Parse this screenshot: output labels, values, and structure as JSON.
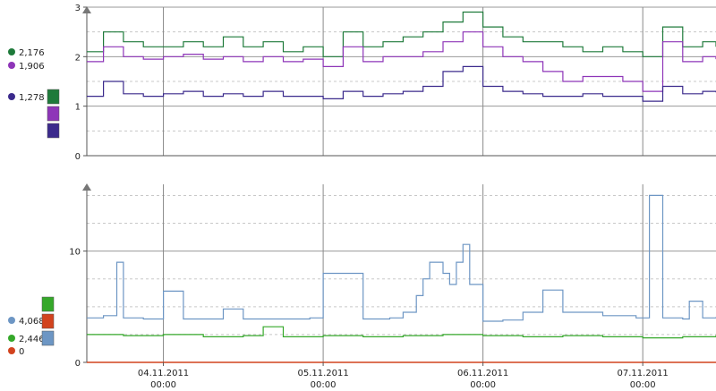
{
  "chart_data": [
    {
      "type": "line",
      "title": "",
      "xlabel": "",
      "ylabel": "",
      "ylim": [
        0,
        3
      ],
      "yticks": [
        0,
        1,
        2,
        3
      ],
      "grid": true,
      "x_range": [
        "03.11.2011 12:30",
        "07.11.2011 11:00"
      ],
      "x_ticks": [
        {
          "date": "04.11.2011",
          "time": "00:00"
        },
        {
          "date": "05.11.2011",
          "time": "00:00"
        },
        {
          "date": "06.11.2011",
          "time": "00:00"
        },
        {
          "date": "07.11.2011",
          "time": "00:00"
        }
      ],
      "series": [
        {
          "legend_value": "2,176",
          "color": "#1e7a3a",
          "x": [
            "03.11.2011 12:30",
            "03.11.2011 15:00",
            "03.11.2011 18:00",
            "03.11.2011 21:00",
            "04.11.2011 00:00",
            "04.11.2011 03:00",
            "04.11.2011 06:00",
            "04.11.2011 09:00",
            "04.11.2011 12:00",
            "04.11.2011 15:00",
            "04.11.2011 18:00",
            "04.11.2011 21:00",
            "05.11.2011 00:00",
            "05.11.2011 03:00",
            "05.11.2011 06:00",
            "05.11.2011 09:00",
            "05.11.2011 12:00",
            "05.11.2011 15:00",
            "05.11.2011 18:00",
            "05.11.2011 21:00",
            "06.11.2011 00:00",
            "06.11.2011 03:00",
            "06.11.2011 06:00",
            "06.11.2011 09:00",
            "06.11.2011 12:00",
            "06.11.2011 15:00",
            "06.11.2011 18:00",
            "06.11.2011 21:00",
            "07.11.2011 00:00",
            "07.11.2011 03:00",
            "07.11.2011 06:00",
            "07.11.2011 09:00",
            "07.11.2011 11:00"
          ],
          "values": [
            2.1,
            2.5,
            2.3,
            2.2,
            2.2,
            2.3,
            2.2,
            2.4,
            2.2,
            2.3,
            2.1,
            2.2,
            2.0,
            2.5,
            2.2,
            2.3,
            2.4,
            2.5,
            2.7,
            2.9,
            2.6,
            2.4,
            2.3,
            2.3,
            2.2,
            2.1,
            2.2,
            2.1,
            2.0,
            2.6,
            2.2,
            2.3,
            2.2
          ]
        },
        {
          "legend_value": "1,906",
          "color": "#8e35b8",
          "x": [
            "03.11.2011 12:30",
            "03.11.2011 15:00",
            "03.11.2011 18:00",
            "03.11.2011 21:00",
            "04.11.2011 00:00",
            "04.11.2011 03:00",
            "04.11.2011 06:00",
            "04.11.2011 09:00",
            "04.11.2011 12:00",
            "04.11.2011 15:00",
            "04.11.2011 18:00",
            "04.11.2011 21:00",
            "05.11.2011 00:00",
            "05.11.2011 03:00",
            "05.11.2011 06:00",
            "05.11.2011 09:00",
            "05.11.2011 12:00",
            "05.11.2011 15:00",
            "05.11.2011 18:00",
            "05.11.2011 21:00",
            "06.11.2011 00:00",
            "06.11.2011 03:00",
            "06.11.2011 06:00",
            "06.11.2011 09:00",
            "06.11.2011 12:00",
            "06.11.2011 15:00",
            "06.11.2011 18:00",
            "06.11.2011 21:00",
            "07.11.2011 00:00",
            "07.11.2011 03:00",
            "07.11.2011 06:00",
            "07.11.2011 09:00",
            "07.11.2011 11:00"
          ],
          "values": [
            1.9,
            2.2,
            2.0,
            1.95,
            2.0,
            2.05,
            1.95,
            2.0,
            1.9,
            2.0,
            1.9,
            1.95,
            1.8,
            2.2,
            1.9,
            2.0,
            2.0,
            2.1,
            2.3,
            2.5,
            2.2,
            2.0,
            1.9,
            1.7,
            1.5,
            1.6,
            1.6,
            1.5,
            1.3,
            2.3,
            1.9,
            2.0,
            1.95
          ]
        },
        {
          "legend_value": "1,278",
          "color": "#3b2a8c",
          "x": [
            "03.11.2011 12:30",
            "03.11.2011 15:00",
            "03.11.2011 18:00",
            "03.11.2011 21:00",
            "04.11.2011 00:00",
            "04.11.2011 03:00",
            "04.11.2011 06:00",
            "04.11.2011 09:00",
            "04.11.2011 12:00",
            "04.11.2011 15:00",
            "04.11.2011 18:00",
            "04.11.2011 21:00",
            "05.11.2011 00:00",
            "05.11.2011 03:00",
            "05.11.2011 06:00",
            "05.11.2011 09:00",
            "05.11.2011 12:00",
            "05.11.2011 15:00",
            "05.11.2011 18:00",
            "05.11.2011 21:00",
            "06.11.2011 00:00",
            "06.11.2011 03:00",
            "06.11.2011 06:00",
            "06.11.2011 09:00",
            "06.11.2011 12:00",
            "06.11.2011 15:00",
            "06.11.2011 18:00",
            "06.11.2011 21:00",
            "07.11.2011 00:00",
            "07.11.2011 03:00",
            "07.11.2011 06:00",
            "07.11.2011 09:00",
            "07.11.2011 11:00"
          ],
          "values": [
            1.2,
            1.5,
            1.25,
            1.2,
            1.25,
            1.3,
            1.2,
            1.25,
            1.2,
            1.3,
            1.2,
            1.2,
            1.15,
            1.3,
            1.2,
            1.25,
            1.3,
            1.4,
            1.7,
            1.8,
            1.4,
            1.3,
            1.25,
            1.2,
            1.2,
            1.25,
            1.2,
            1.2,
            1.1,
            1.4,
            1.25,
            1.3,
            1.28
          ]
        }
      ]
    },
    {
      "type": "line",
      "title": "",
      "xlabel": "",
      "ylabel": "",
      "ylim": [
        0,
        16
      ],
      "yticks": [
        0,
        10
      ],
      "grid": true,
      "x_range": [
        "03.11.2011 12:30",
        "07.11.2011 11:00"
      ],
      "x_ticks": [
        {
          "date": "04.11.2011",
          "time": "00:00"
        },
        {
          "date": "05.11.2011",
          "time": "00:00"
        },
        {
          "date": "06.11.2011",
          "time": "00:00"
        },
        {
          "date": "07.11.2011",
          "time": "00:00"
        }
      ],
      "series": [
        {
          "legend_value": "4,068",
          "color": "#6d96c4",
          "x": [
            "03.11.2011 12:30",
            "03.11.2011 15:00",
            "03.11.2011 17:00",
            "03.11.2011 18:00",
            "03.11.2011 21:00",
            "03.11.2011 23:00",
            "04.11.2011 00:00",
            "04.11.2011 03:00",
            "04.11.2011 06:00",
            "04.11.2011 09:00",
            "04.11.2011 12:00",
            "04.11.2011 18:00",
            "04.11.2011 22:00",
            "04.11.2011 23:00",
            "05.11.2011 00:00",
            "05.11.2011 06:00",
            "05.11.2011 10:00",
            "05.11.2011 12:00",
            "05.11.2011 14:00",
            "05.11.2011 15:00",
            "05.11.2011 16:00",
            "05.11.2011 18:00",
            "05.11.2011 19:00",
            "05.11.2011 20:00",
            "05.11.2011 21:00",
            "05.11.2011 22:00",
            "06.11.2011 00:00",
            "06.11.2011 03:00",
            "06.11.2011 06:00",
            "06.11.2011 09:00",
            "06.11.2011 12:00",
            "06.11.2011 18:00",
            "06.11.2011 23:00",
            "07.11.2011 00:00",
            "07.11.2011 01:00",
            "07.11.2011 03:00",
            "07.11.2011 06:00",
            "07.11.2011 07:00",
            "07.11.2011 09:00",
            "07.11.2011 11:00"
          ],
          "values": [
            4.0,
            4.2,
            9.0,
            4.0,
            3.9,
            3.9,
            6.4,
            3.9,
            3.9,
            4.8,
            3.9,
            3.9,
            4.0,
            4.0,
            8.0,
            3.9,
            4.0,
            4.5,
            6.0,
            7.5,
            9.0,
            8.0,
            7.0,
            9.0,
            10.6,
            7.0,
            3.7,
            3.8,
            4.5,
            6.5,
            4.5,
            4.2,
            4.0,
            4.0,
            15.0,
            4.0,
            3.9,
            5.5,
            4.0,
            4.07
          ]
        },
        {
          "legend_value": "2,446",
          "color": "#35a82a",
          "x": [
            "03.11.2011 12:30",
            "03.11.2011 18:00",
            "04.11.2011 00:00",
            "04.11.2011 06:00",
            "04.11.2011 12:00",
            "04.11.2011 15:00",
            "04.11.2011 18:00",
            "05.11.2011 00:00",
            "05.11.2011 06:00",
            "05.11.2011 12:00",
            "05.11.2011 18:00",
            "06.11.2011 00:00",
            "06.11.2011 06:00",
            "06.11.2011 12:00",
            "06.11.2011 18:00",
            "07.11.2011 00:00",
            "07.11.2011 06:00",
            "07.11.2011 11:00"
          ],
          "values": [
            2.5,
            2.4,
            2.5,
            2.3,
            2.4,
            3.2,
            2.3,
            2.4,
            2.3,
            2.4,
            2.5,
            2.4,
            2.3,
            2.4,
            2.3,
            2.2,
            2.3,
            2.45
          ]
        },
        {
          "legend_value": "0",
          "color": "#d2431e",
          "x": [
            "03.11.2011 12:30",
            "07.11.2011 11:00"
          ],
          "values": [
            0,
            0
          ]
        }
      ]
    }
  ]
}
